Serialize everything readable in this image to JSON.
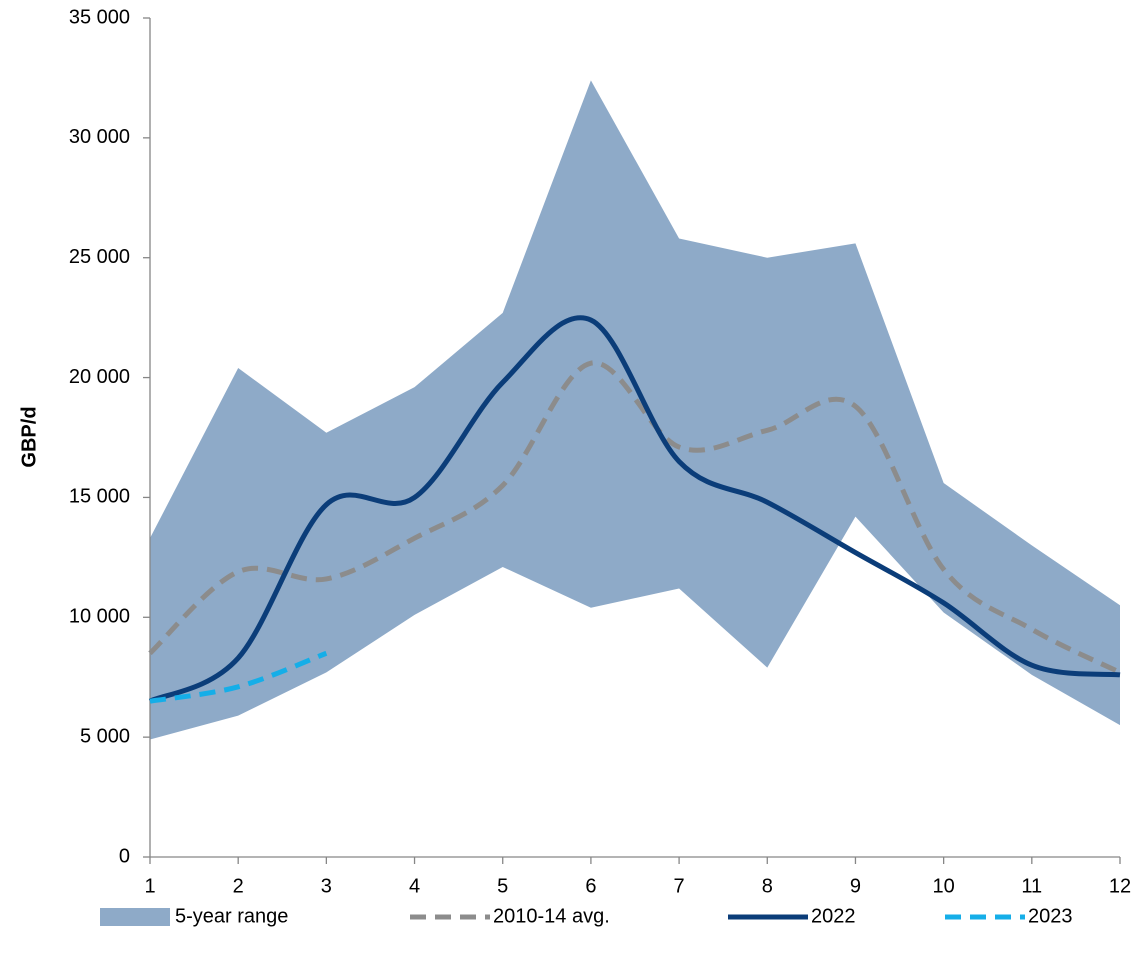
{
  "chart_data": {
    "type": "line",
    "y_label": "GBP/d",
    "x": [
      1,
      2,
      3,
      4,
      5,
      6,
      7,
      8,
      9,
      10,
      11,
      12
    ],
    "xlim": [
      1,
      12
    ],
    "xticks": [
      1,
      2,
      3,
      4,
      5,
      6,
      7,
      8,
      9,
      10,
      11,
      12
    ],
    "ylim": [
      0,
      35000
    ],
    "yticks": [
      0,
      {
        "value": 5000,
        "label": "5 000"
      },
      {
        "value": 10000,
        "label": "10 000"
      },
      {
        "value": 15000,
        "label": "15 000"
      },
      {
        "value": 20000,
        "label": "20 000"
      },
      {
        "value": 25000,
        "label": "25 000"
      },
      {
        "value": 30000,
        "label": "30 000"
      },
      {
        "value": 35000,
        "label": "35 000"
      }
    ],
    "range": {
      "name": "5-year range",
      "color": "#8eaac8",
      "low": [
        4900,
        5900,
        7700,
        10100,
        12100,
        10400,
        11200,
        7900,
        14200,
        10200,
        7600,
        5500
      ],
      "high": [
        13300,
        20400,
        17700,
        19600,
        22700,
        32400,
        25800,
        25000,
        25600,
        15600,
        13000,
        10500
      ]
    },
    "series": [
      {
        "name": "2010-14 avg.",
        "color": "#8c8c8c",
        "dashed": true,
        "values": [
          8500,
          11900,
          11600,
          13300,
          15500,
          20600,
          17100,
          17800,
          18800,
          12000,
          9500,
          7700
        ]
      },
      {
        "name": "2022",
        "color": "#0b3d79",
        "dashed": false,
        "values": [
          6500,
          8300,
          14700,
          15000,
          19800,
          22400,
          16500,
          14800,
          12700,
          10600,
          8000,
          7600
        ]
      },
      {
        "name": "2023",
        "color": "#15aee8",
        "dashed": true,
        "values": [
          6500,
          7100,
          8500,
          null,
          null,
          null,
          null,
          null,
          null,
          null,
          null,
          null
        ]
      }
    ]
  }
}
